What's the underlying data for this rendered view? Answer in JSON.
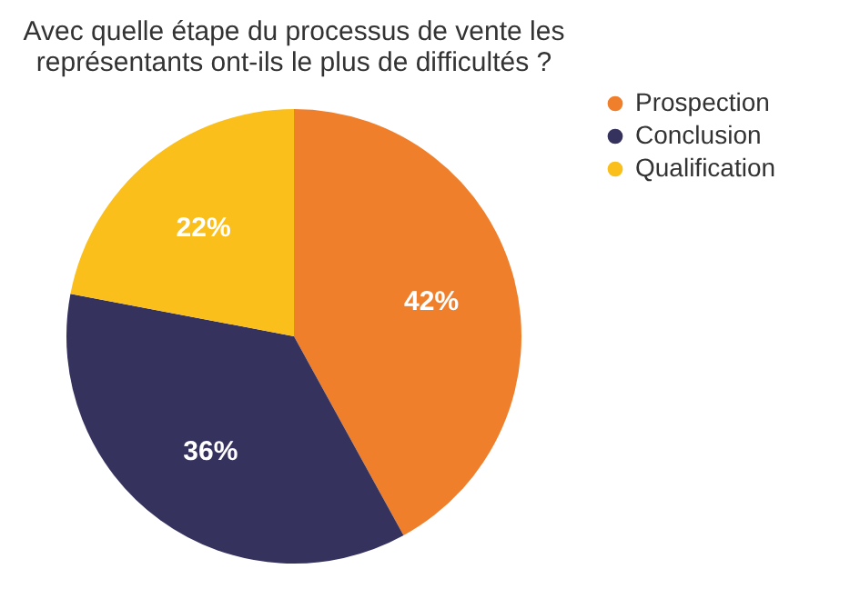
{
  "chart_data": {
    "type": "pie",
    "title": "Avec quelle étape du processus de vente les\nreprésentants ont-ils le plus de difficultés ?",
    "categories": [
      "Prospection",
      "Conclusion",
      "Qualification"
    ],
    "values": [
      42,
      36,
      22
    ],
    "colors": [
      "#f07f2c",
      "#35325e",
      "#fbbf1c"
    ],
    "value_labels": [
      "42%",
      "36%",
      "22%"
    ],
    "legend": "right"
  }
}
